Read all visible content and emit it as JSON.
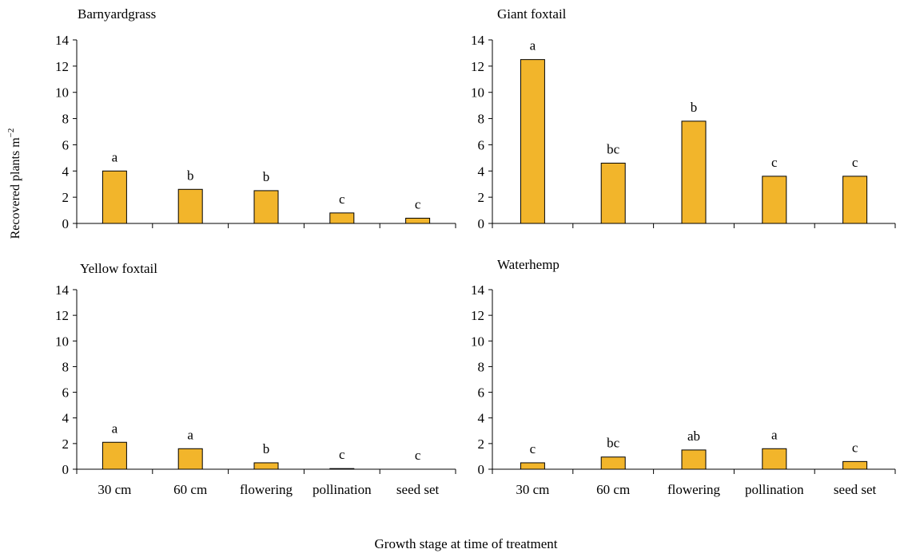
{
  "figure": {
    "ylabel": "Recovered plants m",
    "ylabel_sup": "−2",
    "xlabel": "Growth stage at time of treatment"
  },
  "chart_data": [
    {
      "type": "bar",
      "title": "Barnyardgrass",
      "categories": [
        "30 cm",
        "60 cm",
        "flowering",
        "pollination",
        "seed set"
      ],
      "values": [
        4.0,
        2.6,
        2.5,
        0.8,
        0.4
      ],
      "letters": [
        "a",
        "b",
        "b",
        "c",
        "c"
      ],
      "ylim": [
        0,
        14
      ],
      "yticks": [
        0,
        2,
        4,
        6,
        8,
        10,
        12,
        14
      ],
      "show_xlabels": false
    },
    {
      "type": "bar",
      "title": "Giant foxtail",
      "categories": [
        "30 cm",
        "60 cm",
        "flowering",
        "pollination",
        "seed set"
      ],
      "values": [
        12.5,
        4.6,
        7.8,
        3.6,
        3.6
      ],
      "letters": [
        "a",
        "bc",
        "b",
        "c",
        "c"
      ],
      "ylim": [
        0,
        14
      ],
      "yticks": [
        0,
        2,
        4,
        6,
        8,
        10,
        12,
        14
      ],
      "show_xlabels": false
    },
    {
      "type": "bar",
      "title": "Yellow foxtail",
      "categories": [
        "30 cm",
        "60 cm",
        "flowering",
        "pollination",
        "seed set"
      ],
      "values": [
        2.1,
        1.6,
        0.5,
        0.05,
        0.0
      ],
      "letters": [
        "a",
        "a",
        "b",
        "c",
        "c"
      ],
      "ylim": [
        0,
        14
      ],
      "yticks": [
        0,
        2,
        4,
        6,
        8,
        10,
        12,
        14
      ],
      "show_xlabels": true
    },
    {
      "type": "bar",
      "title": "Waterhemp",
      "categories": [
        "30 cm",
        "60 cm",
        "flowering",
        "pollination",
        "seed set"
      ],
      "values": [
        0.5,
        0.95,
        1.5,
        1.6,
        0.6
      ],
      "letters": [
        "c",
        "bc",
        "ab",
        "a",
        "c"
      ],
      "ylim": [
        0,
        14
      ],
      "yticks": [
        0,
        2,
        4,
        6,
        8,
        10,
        12,
        14
      ],
      "show_xlabels": true
    }
  ],
  "colors": {
    "bar_fill": "#F2B52B",
    "bar_stroke": "#000000",
    "axis": "#000000"
  }
}
